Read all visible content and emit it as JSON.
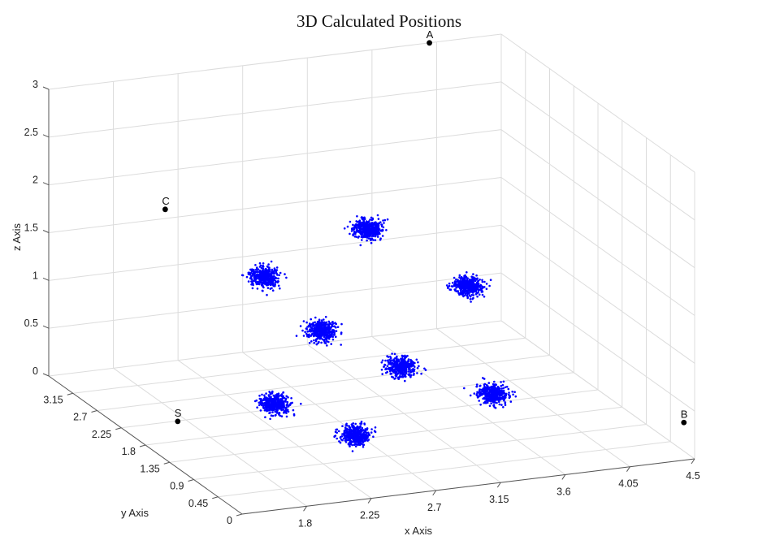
{
  "chart_data": {
    "type": "scatter",
    "title": "3D Calculated Positions",
    "xlabel": "x Axis",
    "ylabel": "y Axis",
    "zlabel": "z Axis",
    "xlim": [
      1.35,
      4.5
    ],
    "ylim": [
      0,
      3.6
    ],
    "zlim": [
      0,
      3
    ],
    "x_ticks": [
      "1.8",
      "2.25",
      "2.7",
      "3.15",
      "3.6",
      "4.05",
      "4.5"
    ],
    "y_ticks": [
      "0",
      "0.45",
      "0.9",
      "1.35",
      "1.8",
      "2.25",
      "2.7",
      "3.15"
    ],
    "z_ticks": [
      "0",
      "0.5",
      "1",
      "1.5",
      "2",
      "2.5",
      "3"
    ],
    "grid": true,
    "colors": {
      "cluster": "#0000ff",
      "anchor": "#000000"
    },
    "anchors": [
      {
        "name": "A",
        "x": 4.0,
        "y": 3.6,
        "z": 3.0
      },
      {
        "name": "B",
        "x": 4.5,
        "y": 0.2,
        "z": 0.3
      },
      {
        "name": "C",
        "x": 1.6,
        "y": 2.1,
        "z": 2.3
      },
      {
        "name": "S",
        "x": 1.5,
        "y": 1.6,
        "z": 0.3
      }
    ],
    "clusters": [
      {
        "x": 2.1,
        "y": 1.6,
        "z": 1.7
      },
      {
        "x": 2.35,
        "y": 1.2,
        "z": 1.25
      },
      {
        "x": 3.2,
        "y": 2.6,
        "z": 1.6
      },
      {
        "x": 3.6,
        "y": 1.8,
        "z": 1.25
      },
      {
        "x": 2.1,
        "y": 1.4,
        "z": 0.45
      },
      {
        "x": 2.4,
        "y": 0.7,
        "z": 0.35
      },
      {
        "x": 3.2,
        "y": 2.0,
        "z": 0.4
      },
      {
        "x": 3.6,
        "y": 1.35,
        "z": 0.3
      }
    ]
  }
}
